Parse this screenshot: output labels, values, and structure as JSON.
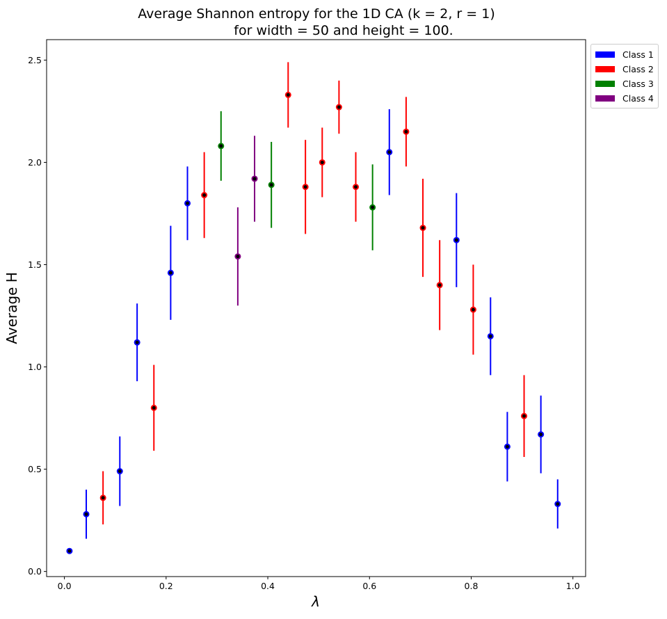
{
  "chart_data": {
    "type": "scatter",
    "title": "Average Shannon entropy for the 1D CA (k = 2, r = 1)\n for width = 50 and height = 100.",
    "xlabel": "λ",
    "ylabel": "Average H",
    "xlim": [
      -0.035,
      1.025
    ],
    "ylim": [
      -0.025,
      2.6
    ],
    "xticks": [
      0.0,
      0.2,
      0.4,
      0.6,
      0.8,
      1.0
    ],
    "xtick_labels": [
      "0.0",
      "0.2",
      "0.4",
      "0.6",
      "0.8",
      "1.0"
    ],
    "yticks": [
      0.0,
      0.5,
      1.0,
      1.5,
      2.0,
      2.5
    ],
    "ytick_labels": [
      "0.0",
      "0.5",
      "1.0",
      "1.5",
      "2.0",
      "2.5"
    ],
    "grid": false,
    "legend_position": "outside upper-right",
    "classes": [
      {
        "name": "Class 1",
        "color": "#0000ff"
      },
      {
        "name": "Class 2",
        "color": "#ff0000"
      },
      {
        "name": "Class 3",
        "color": "#008000"
      },
      {
        "name": "Class 4",
        "color": "#800080"
      }
    ],
    "points": [
      {
        "x": 0.01,
        "y": 0.1,
        "err": 0.0,
        "cls": 0
      },
      {
        "x": 0.043,
        "y": 0.28,
        "err": 0.12,
        "cls": 0
      },
      {
        "x": 0.076,
        "y": 0.36,
        "err": 0.13,
        "cls": 1
      },
      {
        "x": 0.109,
        "y": 0.49,
        "err": 0.17,
        "cls": 0
      },
      {
        "x": 0.143,
        "y": 1.12,
        "err": 0.19,
        "cls": 0
      },
      {
        "x": 0.176,
        "y": 0.8,
        "err": 0.21,
        "cls": 1
      },
      {
        "x": 0.209,
        "y": 1.46,
        "err": 0.23,
        "cls": 0
      },
      {
        "x": 0.242,
        "y": 1.8,
        "err": 0.18,
        "cls": 0
      },
      {
        "x": 0.275,
        "y": 1.84,
        "err": 0.21,
        "cls": 1
      },
      {
        "x": 0.308,
        "y": 2.08,
        "err": 0.17,
        "cls": 2
      },
      {
        "x": 0.341,
        "y": 1.54,
        "err": 0.24,
        "cls": 3
      },
      {
        "x": 0.374,
        "y": 1.92,
        "err": 0.21,
        "cls": 3
      },
      {
        "x": 0.407,
        "y": 1.89,
        "err": 0.21,
        "cls": 2
      },
      {
        "x": 0.44,
        "y": 2.33,
        "err": 0.16,
        "cls": 1
      },
      {
        "x": 0.474,
        "y": 1.88,
        "err": 0.23,
        "cls": 1
      },
      {
        "x": 0.507,
        "y": 2.0,
        "err": 0.17,
        "cls": 1
      },
      {
        "x": 0.54,
        "y": 2.27,
        "err": 0.13,
        "cls": 1
      },
      {
        "x": 0.573,
        "y": 1.88,
        "err": 0.17,
        "cls": 1
      },
      {
        "x": 0.606,
        "y": 1.78,
        "err": 0.21,
        "cls": 2
      },
      {
        "x": 0.639,
        "y": 2.05,
        "err": 0.21,
        "cls": 0
      },
      {
        "x": 0.672,
        "y": 2.15,
        "err": 0.17,
        "cls": 1
      },
      {
        "x": 0.705,
        "y": 1.68,
        "err": 0.24,
        "cls": 1
      },
      {
        "x": 0.738,
        "y": 1.4,
        "err": 0.22,
        "cls": 1
      },
      {
        "x": 0.771,
        "y": 1.62,
        "err": 0.23,
        "cls": 0
      },
      {
        "x": 0.804,
        "y": 1.28,
        "err": 0.22,
        "cls": 1
      },
      {
        "x": 0.838,
        "y": 1.15,
        "err": 0.19,
        "cls": 0
      },
      {
        "x": 0.871,
        "y": 0.61,
        "err": 0.17,
        "cls": 0
      },
      {
        "x": 0.904,
        "y": 0.76,
        "err": 0.2,
        "cls": 1
      },
      {
        "x": 0.937,
        "y": 0.67,
        "err": 0.19,
        "cls": 0
      },
      {
        "x": 0.97,
        "y": 0.33,
        "err": 0.12,
        "cls": 0
      }
    ]
  }
}
